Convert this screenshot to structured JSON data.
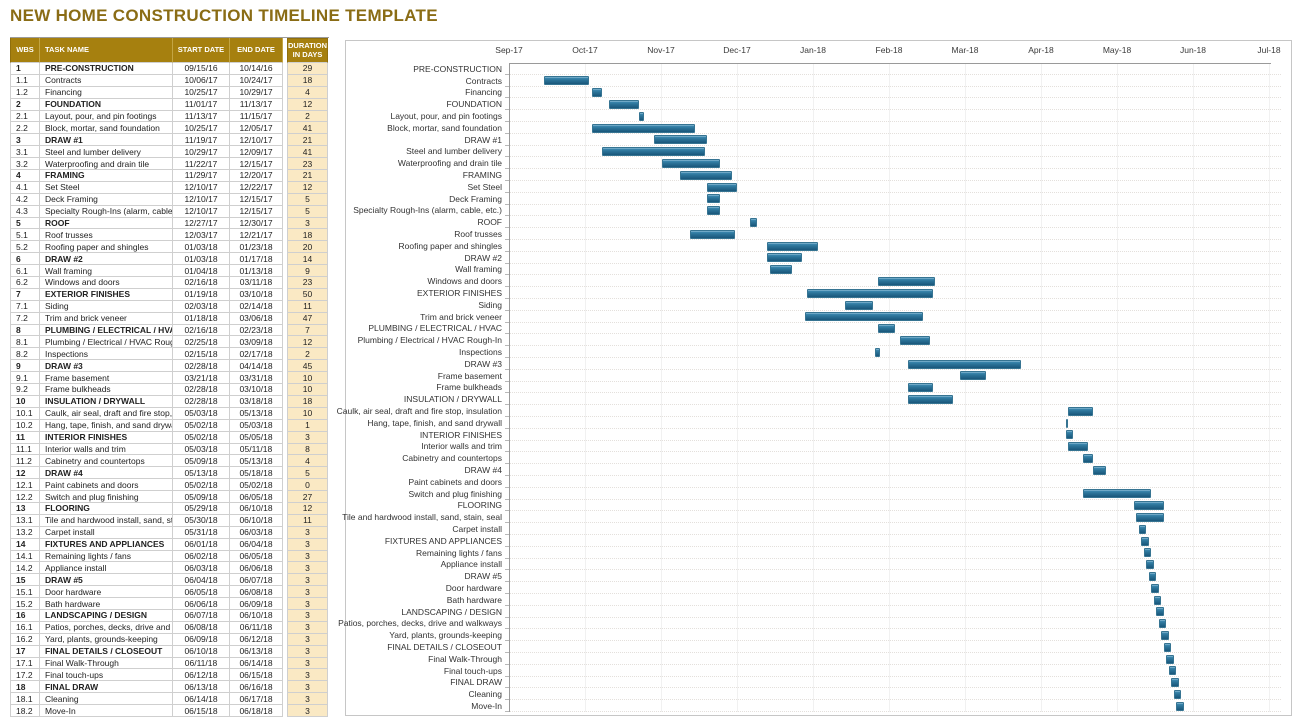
{
  "title": "NEW HOME CONSTRUCTION TIMELINE TEMPLATE",
  "colors": {
    "title_gold": "#8a6c15",
    "header_gold": "#a6800f",
    "duration_cell_fill": "#fae9c4",
    "bar_blue": "#2b7398"
  },
  "table": {
    "columns": [
      "WBS",
      "TASK NAME",
      "START DATE",
      "END DATE",
      "DURATION IN DAYS"
    ]
  },
  "chart_data": {
    "type": "gantt",
    "title": "",
    "legend": "none",
    "grid": "faint monthly vertical lines and dotted row lines",
    "x_axis": {
      "labels": [
        "Sep-17",
        "Oct-17",
        "Nov-17",
        "Dec-17",
        "Jan-18",
        "Feb-18",
        "Mar-18",
        "Apr-18",
        "May-18",
        "Jun-18",
        "Jul-18"
      ],
      "position": "top",
      "start_date": "09/22/17",
      "end_date": "07/22/18"
    },
    "tasks": [
      {
        "wbs": "1",
        "name": "PRE-CONSTRUCTION",
        "start": "09/15/16",
        "end": "10/14/16",
        "days": 29,
        "summary": true
      },
      {
        "wbs": "1.1",
        "name": "Contracts",
        "start": "10/06/17",
        "end": "10/24/17",
        "days": 18,
        "summary": false
      },
      {
        "wbs": "1.2",
        "name": "Financing",
        "start": "10/25/17",
        "end": "10/29/17",
        "days": 4,
        "summary": false
      },
      {
        "wbs": "2",
        "name": "FOUNDATION",
        "start": "11/01/17",
        "end": "11/13/17",
        "days": 12,
        "summary": true
      },
      {
        "wbs": "2.1",
        "name": "Layout, pour, and pin footings",
        "start": "11/13/17",
        "end": "11/15/17",
        "days": 2,
        "summary": false
      },
      {
        "wbs": "2.2",
        "name": "Block, mortar, sand foundation",
        "start": "10/25/17",
        "end": "12/05/17",
        "days": 41,
        "summary": false
      },
      {
        "wbs": "3",
        "name": "DRAW #1",
        "start": "11/19/17",
        "end": "12/10/17",
        "days": 21,
        "summary": true
      },
      {
        "wbs": "3.1",
        "name": "Steel and lumber delivery",
        "start": "10/29/17",
        "end": "12/09/17",
        "days": 41,
        "summary": false
      },
      {
        "wbs": "3.2",
        "name": "Waterproofing and drain tile",
        "start": "11/22/17",
        "end": "12/15/17",
        "days": 23,
        "summary": false
      },
      {
        "wbs": "4",
        "name": "FRAMING",
        "start": "11/29/17",
        "end": "12/20/17",
        "days": 21,
        "summary": true
      },
      {
        "wbs": "4.1",
        "name": "Set Steel",
        "start": "12/10/17",
        "end": "12/22/17",
        "days": 12,
        "summary": false
      },
      {
        "wbs": "4.2",
        "name": "Deck Framing",
        "start": "12/10/17",
        "end": "12/15/17",
        "days": 5,
        "summary": false
      },
      {
        "wbs": "4.3",
        "name": "Specialty Rough-Ins (alarm, cable, etc.)",
        "start": "12/10/17",
        "end": "12/15/17",
        "days": 5,
        "summary": false
      },
      {
        "wbs": "5",
        "name": "ROOF",
        "start": "12/27/17",
        "end": "12/30/17",
        "days": 3,
        "summary": true
      },
      {
        "wbs": "5.1",
        "name": "Roof trusses",
        "start": "12/03/17",
        "end": "12/21/17",
        "days": 18,
        "summary": false
      },
      {
        "wbs": "5.2",
        "name": "Roofing paper and shingles",
        "start": "01/03/18",
        "end": "01/23/18",
        "days": 20,
        "summary": false
      },
      {
        "wbs": "6",
        "name": "DRAW #2",
        "start": "01/03/18",
        "end": "01/17/18",
        "days": 14,
        "summary": true
      },
      {
        "wbs": "6.1",
        "name": "Wall framing",
        "start": "01/04/18",
        "end": "01/13/18",
        "days": 9,
        "summary": false
      },
      {
        "wbs": "6.2",
        "name": "Windows and doors",
        "start": "02/16/18",
        "end": "03/11/18",
        "days": 23,
        "summary": false
      },
      {
        "wbs": "7",
        "name": "EXTERIOR FINISHES",
        "start": "01/19/18",
        "end": "03/10/18",
        "days": 50,
        "summary": true
      },
      {
        "wbs": "7.1",
        "name": "Siding",
        "start": "02/03/18",
        "end": "02/14/18",
        "days": 11,
        "summary": false
      },
      {
        "wbs": "7.2",
        "name": "Trim and brick veneer",
        "start": "01/18/18",
        "end": "03/06/18",
        "days": 47,
        "summary": false
      },
      {
        "wbs": "8",
        "name": "PLUMBING / ELECTRICAL / HVAC",
        "start": "02/16/18",
        "end": "02/23/18",
        "days": 7,
        "summary": true
      },
      {
        "wbs": "8.1",
        "name": "Plumbing / Electrical / HVAC Rough-In",
        "start": "02/25/18",
        "end": "03/09/18",
        "days": 12,
        "summary": false
      },
      {
        "wbs": "8.2",
        "name": "Inspections",
        "start": "02/15/18",
        "end": "02/17/18",
        "days": 2,
        "summary": false
      },
      {
        "wbs": "9",
        "name": "DRAW #3",
        "start": "02/28/18",
        "end": "04/14/18",
        "days": 45,
        "summary": true
      },
      {
        "wbs": "9.1",
        "name": "Frame basement",
        "start": "03/21/18",
        "end": "03/31/18",
        "days": 10,
        "summary": false
      },
      {
        "wbs": "9.2",
        "name": "Frame bulkheads",
        "start": "02/28/18",
        "end": "03/10/18",
        "days": 10,
        "summary": false
      },
      {
        "wbs": "10",
        "name": "INSULATION / DRYWALL",
        "start": "02/28/18",
        "end": "03/18/18",
        "days": 18,
        "summary": true
      },
      {
        "wbs": "10.1",
        "name": "Caulk, air seal, draft and fire stop, insulation",
        "start": "05/03/18",
        "end": "05/13/18",
        "days": 10,
        "summary": false
      },
      {
        "wbs": "10.2",
        "name": "Hang, tape, finish, and sand drywall",
        "start": "05/02/18",
        "end": "05/03/18",
        "days": 1,
        "summary": false
      },
      {
        "wbs": "11",
        "name": "INTERIOR FINISHES",
        "start": "05/02/18",
        "end": "05/05/18",
        "days": 3,
        "summary": true
      },
      {
        "wbs": "11.1",
        "name": "Interior walls and trim",
        "start": "05/03/18",
        "end": "05/11/18",
        "days": 8,
        "summary": false
      },
      {
        "wbs": "11.2",
        "name": "Cabinetry and countertops",
        "start": "05/09/18",
        "end": "05/13/18",
        "days": 4,
        "summary": false
      },
      {
        "wbs": "12",
        "name": "DRAW #4",
        "start": "05/13/18",
        "end": "05/18/18",
        "days": 5,
        "summary": true
      },
      {
        "wbs": "12.1",
        "name": "Paint cabinets and doors",
        "start": "05/02/18",
        "end": "05/02/18",
        "days": 0,
        "summary": false
      },
      {
        "wbs": "12.2",
        "name": "Switch and plug finishing",
        "start": "05/09/18",
        "end": "06/05/18",
        "days": 27,
        "summary": false
      },
      {
        "wbs": "13",
        "name": "FLOORING",
        "start": "05/29/18",
        "end": "06/10/18",
        "days": 12,
        "summary": true
      },
      {
        "wbs": "13.1",
        "name": "Tile and hardwood install, sand, stain, seal",
        "start": "05/30/18",
        "end": "06/10/18",
        "days": 11,
        "summary": false
      },
      {
        "wbs": "13.2",
        "name": "Carpet install",
        "start": "05/31/18",
        "end": "06/03/18",
        "days": 3,
        "summary": false
      },
      {
        "wbs": "14",
        "name": "FIXTURES AND APPLIANCES",
        "start": "06/01/18",
        "end": "06/04/18",
        "days": 3,
        "summary": true
      },
      {
        "wbs": "14.1",
        "name": "Remaining lights / fans",
        "start": "06/02/18",
        "end": "06/05/18",
        "days": 3,
        "summary": false
      },
      {
        "wbs": "14.2",
        "name": "Appliance install",
        "start": "06/03/18",
        "end": "06/06/18",
        "days": 3,
        "summary": false
      },
      {
        "wbs": "15",
        "name": "DRAW #5",
        "start": "06/04/18",
        "end": "06/07/18",
        "days": 3,
        "summary": true
      },
      {
        "wbs": "15.1",
        "name": "Door hardware",
        "start": "06/05/18",
        "end": "06/08/18",
        "days": 3,
        "summary": false
      },
      {
        "wbs": "15.2",
        "name": "Bath hardware",
        "start": "06/06/18",
        "end": "06/09/18",
        "days": 3,
        "summary": false
      },
      {
        "wbs": "16",
        "name": "LANDSCAPING / DESIGN",
        "start": "06/07/18",
        "end": "06/10/18",
        "days": 3,
        "summary": true
      },
      {
        "wbs": "16.1",
        "name": "Patios, porches, decks, drive and walkways",
        "start": "06/08/18",
        "end": "06/11/18",
        "days": 3,
        "summary": false
      },
      {
        "wbs": "16.2",
        "name": "Yard, plants, grounds-keeping",
        "start": "06/09/18",
        "end": "06/12/18",
        "days": 3,
        "summary": false
      },
      {
        "wbs": "17",
        "name": "FINAL DETAILS / CLOSEOUT",
        "start": "06/10/18",
        "end": "06/13/18",
        "days": 3,
        "summary": true
      },
      {
        "wbs": "17.1",
        "name": "Final Walk-Through",
        "start": "06/11/18",
        "end": "06/14/18",
        "days": 3,
        "summary": false
      },
      {
        "wbs": "17.2",
        "name": "Final touch-ups",
        "start": "06/12/18",
        "end": "06/15/18",
        "days": 3,
        "summary": false
      },
      {
        "wbs": "18",
        "name": "FINAL DRAW",
        "start": "06/13/18",
        "end": "06/16/18",
        "days": 3,
        "summary": true
      },
      {
        "wbs": "18.1",
        "name": "Cleaning",
        "start": "06/14/18",
        "end": "06/17/18",
        "days": 3,
        "summary": false
      },
      {
        "wbs": "18.2",
        "name": "Move-In",
        "start": "06/15/18",
        "end": "06/18/18",
        "days": 3,
        "summary": false
      }
    ]
  }
}
